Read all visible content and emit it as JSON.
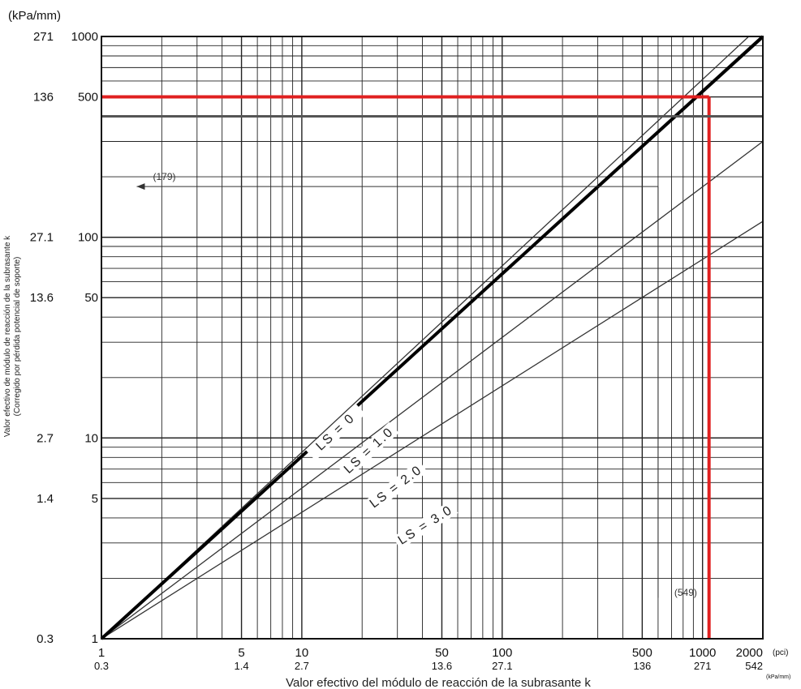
{
  "chart_data": {
    "type": "line",
    "title": "",
    "xscale": "log",
    "yscale": "log",
    "xlim": [
      1,
      2000
    ],
    "ylim": [
      1,
      1000
    ],
    "grid": true,
    "x_unit_top": "(pci)",
    "x_unit_bottom": "(kPa/mm)",
    "y_unit": "(kPa/mm)",
    "xlabel": "Valor efectivo del módulo de reacción de la subrasante k",
    "ylabel_line1": "Valor efectivo de módulo de reacción de la subrasante k",
    "ylabel_line2": "(Corregido por pérdida potencial de soporte)",
    "x_ticks": [
      {
        "value": 1,
        "label": "1",
        "kpa": "0.3"
      },
      {
        "value": 5,
        "label": "5",
        "kpa": "1.4"
      },
      {
        "value": 10,
        "label": "10",
        "kpa": "2.7"
      },
      {
        "value": 50,
        "label": "50",
        "kpa": "13.6"
      },
      {
        "value": 100,
        "label": "100",
        "kpa": "27.1"
      },
      {
        "value": 500,
        "label": "500",
        "kpa": "136"
      },
      {
        "value": 1000,
        "label": "1000",
        "kpa": "271"
      },
      {
        "value": 2000,
        "label": "2000",
        "kpa": "542"
      }
    ],
    "y_ticks": [
      {
        "value": 1,
        "label": "1",
        "kpa": "0.3"
      },
      {
        "value": 5,
        "label": "5",
        "kpa": "1.4"
      },
      {
        "value": 10,
        "label": "10",
        "kpa": "2.7"
      },
      {
        "value": 50,
        "label": "50",
        "kpa": "13.6"
      },
      {
        "value": 100,
        "label": "100",
        "kpa": "27.1"
      },
      {
        "value": 500,
        "label": "500",
        "kpa": "136"
      },
      {
        "value": 1000,
        "label": "1000",
        "kpa": "271"
      }
    ],
    "series": [
      {
        "name": "LS = 0",
        "x": [
          1,
          1700
        ],
        "y": [
          1,
          1000
        ],
        "label_at": [
          15,
          10.5
        ]
      },
      {
        "name": "LS = 1.0",
        "x": [
          1,
          2000
        ],
        "y": [
          1,
          980
        ],
        "label_at": [
          22,
          8.5
        ]
      },
      {
        "name": "LS = 2.0",
        "x": [
          1,
          2000
        ],
        "y": [
          1,
          300
        ],
        "label_at": [
          30,
          5.6
        ]
      },
      {
        "name": "LS = 3.0",
        "x": [
          1,
          2000
        ],
        "y": [
          1,
          120
        ],
        "label_at": [
          42,
          3.6
        ]
      }
    ],
    "annotations": [
      {
        "text": "(179)",
        "x": 1.5,
        "y": 200
      },
      {
        "text": "(549)",
        "x": 600,
        "y": 1.7
      }
    ],
    "highlight_red": {
      "x": 1000,
      "y": 500
    }
  }
}
